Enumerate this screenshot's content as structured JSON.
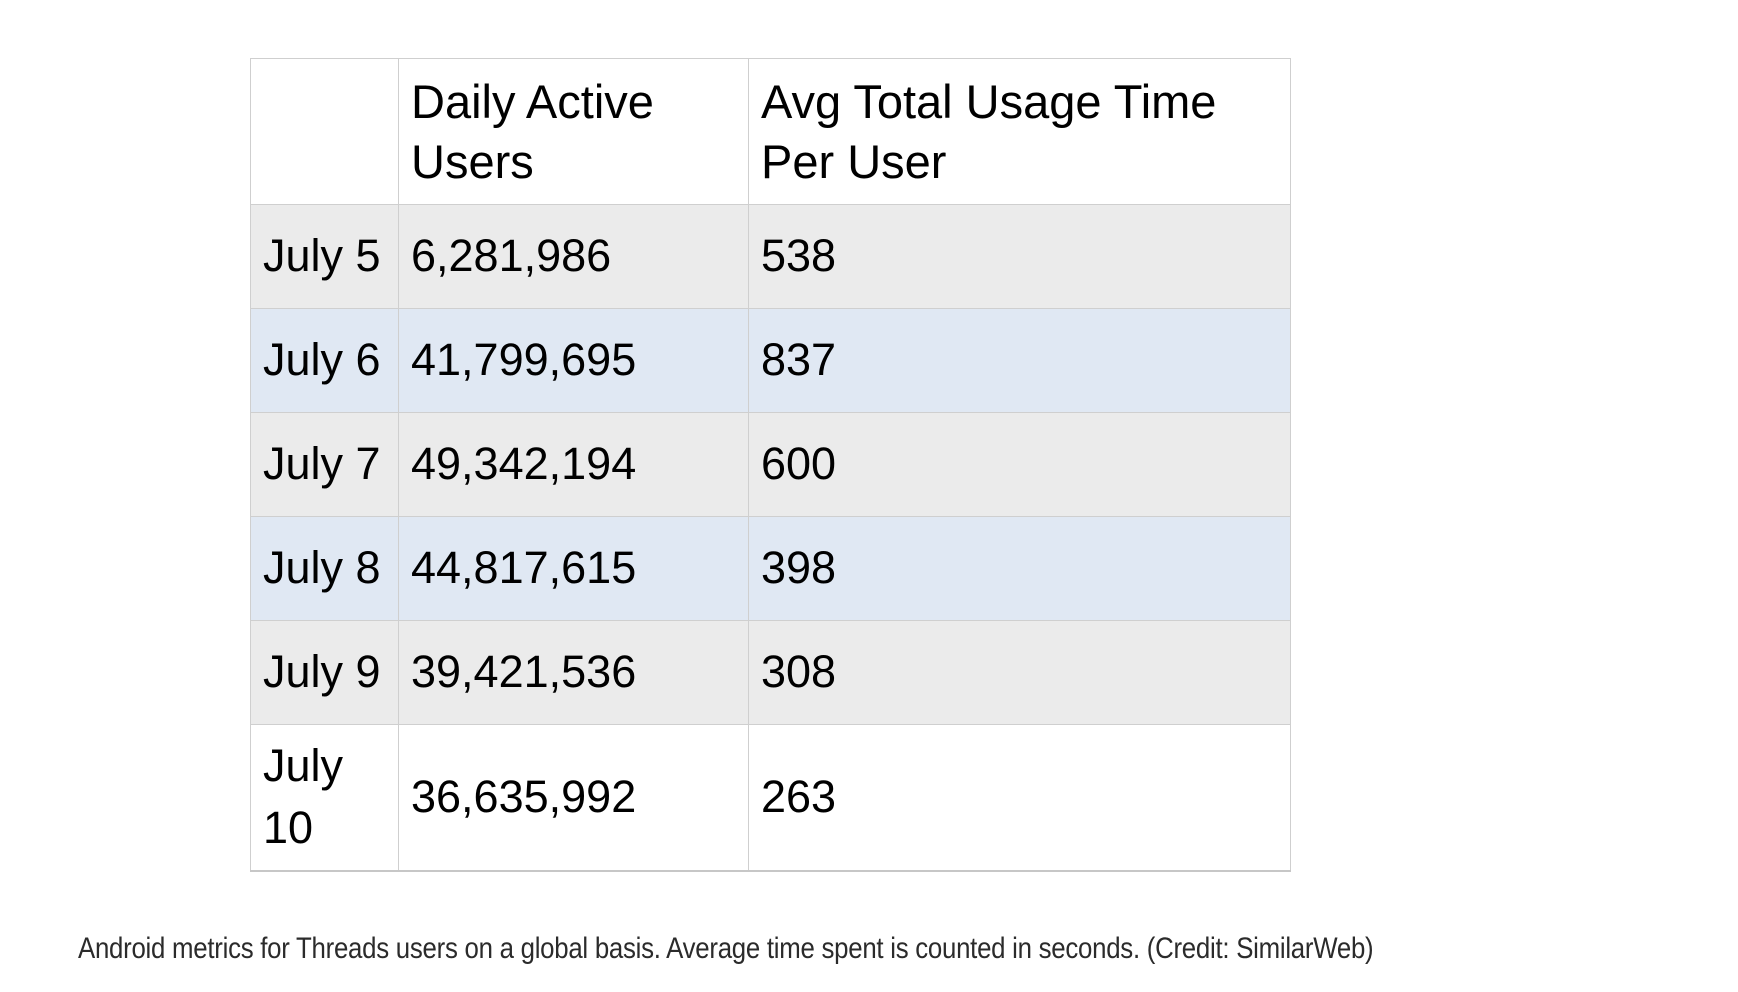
{
  "colors": {
    "background": "#ffffff",
    "row_stripe_gray": "#ebebeb",
    "row_stripe_blue": "#e0e8f3",
    "row_white": "#ffffff",
    "table_border": "#cfcfcf",
    "table_bottom_border": "#c7c7c7",
    "table_text": "#000000",
    "caption_text": "#2b2b2b"
  },
  "table": {
    "header": {
      "date_col": "",
      "dau": "Daily Active Users",
      "avg": "Avg Total Usage Time Per User"
    },
    "rows": [
      {
        "label": "July 5",
        "dau": "6,281,986",
        "avg": "538"
      },
      {
        "label": "July 6",
        "dau": "41,799,695",
        "avg": "837"
      },
      {
        "label": "July 7",
        "dau": "49,342,194",
        "avg": "600"
      },
      {
        "label": "July 8",
        "dau": "44,817,615",
        "avg": "398"
      },
      {
        "label": "July 9",
        "dau": "39,421,536",
        "avg": "308"
      },
      {
        "label": "July 10",
        "dau": "36,635,992",
        "avg": "263"
      }
    ]
  },
  "caption": "Android metrics for Threads users on a global basis. Average time spent is counted in seconds. (Credit: SimilarWeb)",
  "chart_data": {
    "type": "table",
    "columns": [
      "",
      "Daily Active Users",
      "Avg Total Usage Time Per User"
    ],
    "rows": [
      [
        "July 5",
        6281986,
        538
      ],
      [
        "July 6",
        41799695,
        837
      ],
      [
        "July 7",
        49342194,
        600
      ],
      [
        "July 8",
        44817615,
        398
      ],
      [
        "July 9",
        39421536,
        308
      ],
      [
        "July 10",
        36635992,
        263
      ]
    ],
    "caption": "Android metrics for Threads users on a global basis. Average time spent is counted in seconds. (Credit: SimilarWeb)",
    "units": {
      "Avg Total Usage Time Per User": "seconds"
    },
    "platform": "Android",
    "source": "SimilarWeb"
  }
}
